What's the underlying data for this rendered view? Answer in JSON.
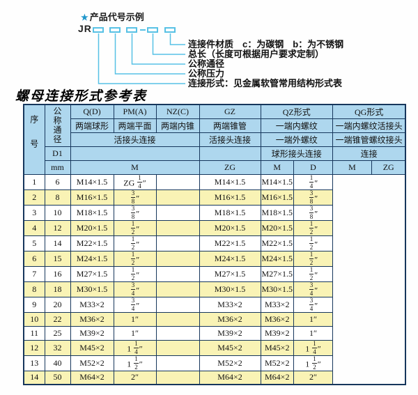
{
  "colors": {
    "header_bg": "#aed7ee",
    "row_alt": "#f9f3b5",
    "border": "#16365c",
    "line_cyan": "#57c1e5",
    "star_blue": "#1e96cb"
  },
  "code_example": {
    "star": "★",
    "title": "产品代号示例",
    "prefix": "JR",
    "labels": [
      "连接件材质　c：为碳钢　b：为不锈钢",
      "总长（长度可根据用户要求定制）",
      "公称通径",
      "公称压力",
      "连接形式：见金属软管常用结构形式表"
    ]
  },
  "table": {
    "title": "螺母连接形式参考表",
    "header": {
      "col_seq": "序号",
      "col_dn": "公称通径",
      "d1": "D1",
      "unit": "mm",
      "union_conn": "活接头连接",
      "m_label": "M",
      "q": {
        "code": "Q(D)",
        "desc": "两端球形"
      },
      "pm": {
        "code": "PM(A)",
        "desc": "两端平面"
      },
      "nz": {
        "code": "NZ(C)",
        "desc": "两端内锥"
      },
      "gz": {
        "code": "GZ",
        "desc": "两端锥管",
        "conn": "活接头连接",
        "sub": "ZG"
      },
      "qz": {
        "code": "QZ形式",
        "desc1": "一端内螺纹",
        "desc2": "一端外螺纹",
        "conn": "球形接头连接",
        "sub1": "M",
        "sub2": "D"
      },
      "qg": {
        "code": "QG形式",
        "desc1": "一端内螺纹活接头",
        "desc2": "一端锥管螺纹接头",
        "conn": "连接",
        "sub1": "M",
        "sub2": "ZG"
      }
    },
    "col_keys": [
      "seq",
      "dn",
      "m",
      "zg",
      "qz-m",
      "qz-d",
      "qg-m",
      "qg-zg"
    ],
    "rows": [
      [
        "1",
        "6",
        "M14×1.5",
        "ZG 1/4″",
        "",
        "M14×1.5",
        "M14×1.5",
        "1/4″"
      ],
      [
        "2",
        "8",
        "M16×1.5",
        "3/8″",
        "",
        "M16×1.5",
        "M16×1.5",
        "3/8″"
      ],
      [
        "3",
        "10",
        "M18×1.5",
        "3/8″",
        "",
        "M18×1.5",
        "M18×1.5",
        "3/8″"
      ],
      [
        "4",
        "12",
        "M20×1.5",
        "1/2″",
        "",
        "M20×1.5",
        "M20×1.5",
        "1/2″"
      ],
      [
        "5",
        "14",
        "M22×1.5",
        "1/2″",
        "",
        "M22×1.5",
        "M22×1.5",
        "1/2″"
      ],
      [
        "6",
        "15",
        "M24×1.5",
        "1/2″",
        "",
        "M24×1.5",
        "M24×1.5",
        "1/2″"
      ],
      [
        "7",
        "16",
        "M27×1.5",
        "1/2″",
        "",
        "M27×1.5",
        "M27×1.5",
        "1/2″"
      ],
      [
        "8",
        "18",
        "M30×1.5",
        "3/4″",
        "",
        "M30×1.5",
        "M30×1.5",
        "3/4″"
      ],
      [
        "9",
        "20",
        "M33×2",
        "3/4″",
        "",
        "M33×2",
        "M33×2",
        "3/4″"
      ],
      [
        "10",
        "22",
        "M36×2",
        "1″",
        "",
        "M36×2",
        "M36×2",
        "1″"
      ],
      [
        "11",
        "25",
        "M39×2",
        "1″",
        "",
        "M39×2",
        "M39×2",
        "1″"
      ],
      [
        "12",
        "32",
        "M45×2",
        "1 1/4″",
        "",
        "M45×2",
        "M45×2",
        "1 1/4″"
      ],
      [
        "13",
        "40",
        "M52×2",
        "1 1/2″",
        "",
        "M52×2",
        "M52×2",
        "1 1/2″"
      ],
      [
        "14",
        "50",
        "M64×2",
        "2″",
        "",
        "M64×2",
        "M64×2",
        "2″"
      ]
    ]
  }
}
